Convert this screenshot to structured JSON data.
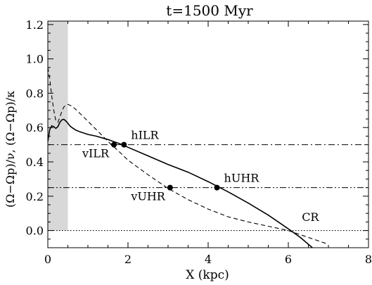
{
  "chart_data": {
    "type": "line",
    "title": "t=1500 Myr",
    "xlabel": "X (kpc)",
    "ylabel": "(Ω−Ωp)/ν, (Ω−Ωp)/κ",
    "xlim": [
      0,
      8
    ],
    "ylim": [
      -0.1,
      1.22
    ],
    "x_ticks": [
      0,
      2,
      4,
      6,
      8
    ],
    "y_ticks": [
      0.0,
      0.2,
      0.4,
      0.6,
      0.8,
      1.0,
      1.2
    ],
    "x_tick_labels": [
      "0",
      "2",
      "4",
      "6",
      "8"
    ],
    "y_tick_labels": [
      "0.0",
      "0.2",
      "0.4",
      "0.6",
      "0.8",
      "1.0",
      "1.2"
    ],
    "shaded_region": {
      "x0": 0,
      "x1": 0.5,
      "color": "#d8d8d8"
    },
    "series": [
      {
        "style": "solid",
        "x": [
          0.0,
          0.05,
          0.1,
          0.15,
          0.2,
          0.25,
          0.3,
          0.35,
          0.4,
          0.45,
          0.5,
          0.55,
          0.6,
          0.7,
          0.8,
          1.0,
          1.2,
          1.5,
          1.8,
          2.0,
          2.5,
          3.0,
          3.5,
          4.0,
          4.5,
          5.0,
          5.5,
          6.0,
          6.3,
          6.6
        ],
        "y": [
          0.52,
          0.59,
          0.61,
          0.605,
          0.595,
          0.605,
          0.63,
          0.645,
          0.648,
          0.638,
          0.625,
          0.61,
          0.6,
          0.585,
          0.575,
          0.56,
          0.55,
          0.53,
          0.505,
          0.485,
          0.435,
          0.385,
          0.34,
          0.285,
          0.225,
          0.16,
          0.09,
          0.01,
          -0.04,
          -0.1
        ]
      },
      {
        "style": "dashed",
        "x": [
          0.0,
          0.05,
          0.1,
          0.15,
          0.2,
          0.25,
          0.3,
          0.35,
          0.4,
          0.45,
          0.5,
          0.55,
          0.6,
          0.7,
          0.9,
          1.2,
          1.5,
          1.8,
          2.0,
          2.5,
          3.0,
          3.5,
          4.0,
          4.5,
          5.0,
          5.5,
          6.0,
          6.5,
          7.0
        ],
        "y": [
          0.95,
          0.88,
          0.78,
          0.7,
          0.64,
          0.63,
          0.66,
          0.695,
          0.72,
          0.73,
          0.735,
          0.73,
          0.725,
          0.705,
          0.66,
          0.59,
          0.52,
          0.455,
          0.41,
          0.325,
          0.245,
          0.18,
          0.125,
          0.08,
          0.05,
          0.025,
          0.0,
          -0.04,
          -0.08
        ]
      }
    ],
    "reference_lines": [
      {
        "y": 0.5,
        "style": "dash-dot"
      },
      {
        "y": 0.25,
        "style": "dash-dot-dot"
      },
      {
        "y": 0.0,
        "style": "dotted"
      }
    ],
    "markers": [
      {
        "label": "vILR",
        "x": 1.65,
        "y": 0.5,
        "label_pos": "lower-left"
      },
      {
        "label": "hILR",
        "x": 1.9,
        "y": 0.5,
        "label_pos": "upper-right"
      },
      {
        "label": "vUHR",
        "x": 3.05,
        "y": 0.25,
        "label_pos": "lower-left"
      },
      {
        "label": "hUHR",
        "x": 4.22,
        "y": 0.25,
        "label_pos": "upper-right"
      }
    ],
    "annotations": [
      {
        "label": "CR",
        "x": 6.55,
        "y": 0.055
      }
    ]
  }
}
